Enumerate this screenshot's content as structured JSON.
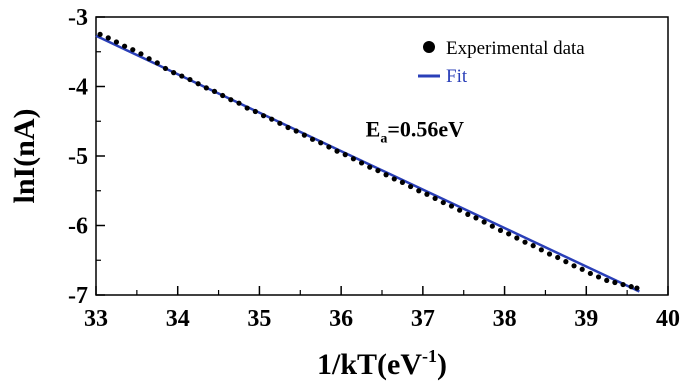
{
  "chart_data": {
    "type": "scatter",
    "xlabel": "1/kT(eV",
    "xlabel_sup": "-1",
    "xlabel_close": ")",
    "ylabel": "lnI(nA)",
    "xlim": [
      33,
      40
    ],
    "ylim": [
      -7,
      -3
    ],
    "x_ticks": [
      33,
      34,
      35,
      36,
      37,
      38,
      39,
      40
    ],
    "y_ticks": [
      -3,
      -4,
      -5,
      -6,
      -7
    ],
    "x_tick_labels": [
      "33",
      "34",
      "35",
      "36",
      "37",
      "38",
      "39",
      "40"
    ],
    "y_tick_labels": [
      "-3",
      "-4",
      "-5",
      "-6",
      "-7"
    ],
    "grid": false,
    "legend_position": "top-right",
    "annotation": {
      "text_main": "E",
      "text_sub": "a",
      "text_rest": "=0.56eV",
      "x": 36.3,
      "y": -4.72
    },
    "series": [
      {
        "name": "Experimental data",
        "kind": "scatter",
        "color": "#000000",
        "x": [
          33.05,
          33.15,
          33.25,
          33.35,
          33.45,
          33.55,
          33.65,
          33.75,
          33.85,
          33.95,
          34.05,
          34.15,
          34.25,
          34.35,
          34.45,
          34.55,
          34.65,
          34.75,
          34.85,
          34.95,
          35.05,
          35.15,
          35.25,
          35.35,
          35.45,
          35.55,
          35.65,
          35.75,
          35.85,
          35.95,
          36.05,
          36.15,
          36.25,
          36.35,
          36.45,
          36.55,
          36.65,
          36.75,
          36.85,
          36.95,
          37.05,
          37.15,
          37.25,
          37.35,
          37.45,
          37.55,
          37.65,
          37.75,
          37.85,
          37.95,
          38.05,
          38.15,
          38.25,
          38.35,
          38.45,
          38.55,
          38.65,
          38.75,
          38.85,
          38.95,
          39.05,
          39.15,
          39.25,
          39.35,
          39.45,
          39.55,
          39.62
        ],
        "y": [
          -3.25,
          -3.3,
          -3.36,
          -3.42,
          -3.47,
          -3.53,
          -3.6,
          -3.66,
          -3.74,
          -3.8,
          -3.85,
          -3.9,
          -3.96,
          -4.02,
          -4.07,
          -4.13,
          -4.19,
          -4.24,
          -4.31,
          -4.36,
          -4.42,
          -4.47,
          -4.53,
          -4.59,
          -4.64,
          -4.7,
          -4.76,
          -4.81,
          -4.87,
          -4.93,
          -4.98,
          -5.04,
          -5.1,
          -5.16,
          -5.21,
          -5.27,
          -5.33,
          -5.38,
          -5.44,
          -5.5,
          -5.55,
          -5.61,
          -5.67,
          -5.72,
          -5.78,
          -5.84,
          -5.89,
          -5.95,
          -6.01,
          -6.07,
          -6.12,
          -6.18,
          -6.24,
          -6.29,
          -6.35,
          -6.41,
          -6.46,
          -6.52,
          -6.58,
          -6.63,
          -6.69,
          -6.74,
          -6.79,
          -6.82,
          -6.85,
          -6.88,
          -6.9
        ]
      },
      {
        "name": "Fit",
        "kind": "line",
        "color": "#2a3fb8",
        "x": [
          33.0,
          39.65
        ],
        "y": [
          -3.27,
          -6.95
        ]
      }
    ]
  },
  "colors": {
    "fit": "#2a3fb8",
    "points": "#000000",
    "axes": "#000000"
  }
}
